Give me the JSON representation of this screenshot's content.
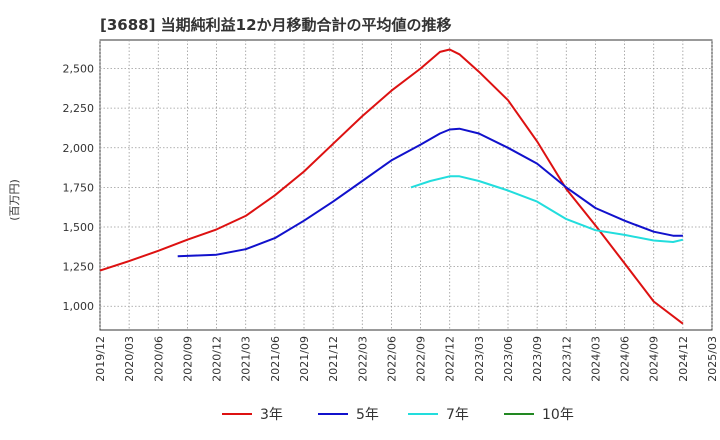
{
  "chart_data": {
    "type": "line",
    "title": "[3688]  当期純利益12か月移動合計の平均値の推移",
    "ylabel": "(百万円)",
    "xlabel": "",
    "ylim": [
      850,
      2680
    ],
    "xlim": [
      "2019-12",
      "2025-03"
    ],
    "grid": true,
    "legend_position": "bottom",
    "y_ticks": [
      1000,
      1250,
      1500,
      1750,
      2000,
      2250,
      2500
    ],
    "y_tick_labels": [
      "1,000",
      "1,250",
      "1,500",
      "1,750",
      "2,000",
      "2,250",
      "2,500"
    ],
    "x_tick_labels": [
      "2019/12",
      "2020/03",
      "2020/06",
      "2020/09",
      "2020/12",
      "2021/03",
      "2021/06",
      "2021/09",
      "2021/12",
      "2022/03",
      "2022/06",
      "2022/09",
      "2022/12",
      "2023/03",
      "2023/06",
      "2023/09",
      "2023/12",
      "2024/03",
      "2024/06",
      "2024/09",
      "2024/12",
      "2025/03"
    ],
    "series": [
      {
        "name": "3年",
        "color": "#dd1111",
        "points": [
          [
            "2019-12",
            1225
          ],
          [
            "2020-03",
            1285
          ],
          [
            "2020-06",
            1350
          ],
          [
            "2020-09",
            1420
          ],
          [
            "2020-12",
            1485
          ],
          [
            "2021-03",
            1570
          ],
          [
            "2021-06",
            1700
          ],
          [
            "2021-09",
            1850
          ],
          [
            "2021-12",
            2025
          ],
          [
            "2022-03",
            2200
          ],
          [
            "2022-06",
            2360
          ],
          [
            "2022-09",
            2500
          ],
          [
            "2022-11",
            2605
          ],
          [
            "2022-12",
            2620
          ],
          [
            "2023-01",
            2590
          ],
          [
            "2023-03",
            2480
          ],
          [
            "2023-06",
            2300
          ],
          [
            "2023-09",
            2040
          ],
          [
            "2023-12",
            1740
          ],
          [
            "2024-03",
            1510
          ],
          [
            "2024-06",
            1270
          ],
          [
            "2024-09",
            1030
          ],
          [
            "2024-12",
            890
          ]
        ]
      },
      {
        "name": "5年",
        "color": "#1111cc",
        "points": [
          [
            "2020-08",
            1315
          ],
          [
            "2020-12",
            1325
          ],
          [
            "2021-03",
            1360
          ],
          [
            "2021-06",
            1430
          ],
          [
            "2021-09",
            1540
          ],
          [
            "2021-12",
            1660
          ],
          [
            "2022-03",
            1790
          ],
          [
            "2022-06",
            1920
          ],
          [
            "2022-09",
            2020
          ],
          [
            "2022-11",
            2090
          ],
          [
            "2022-12",
            2115
          ],
          [
            "2023-01",
            2120
          ],
          [
            "2023-03",
            2090
          ],
          [
            "2023-06",
            2000
          ],
          [
            "2023-09",
            1900
          ],
          [
            "2023-12",
            1750
          ],
          [
            "2024-03",
            1620
          ],
          [
            "2024-06",
            1540
          ],
          [
            "2024-09",
            1470
          ],
          [
            "2024-11",
            1445
          ],
          [
            "2024-12",
            1445
          ]
        ]
      },
      {
        "name": "7年",
        "color": "#22dddd",
        "points": [
          [
            "2022-08",
            1750
          ],
          [
            "2022-10",
            1790
          ],
          [
            "2022-12",
            1820
          ],
          [
            "2023-01",
            1820
          ],
          [
            "2023-03",
            1790
          ],
          [
            "2023-06",
            1730
          ],
          [
            "2023-09",
            1660
          ],
          [
            "2023-12",
            1550
          ],
          [
            "2024-03",
            1480
          ],
          [
            "2024-06",
            1450
          ],
          [
            "2024-09",
            1415
          ],
          [
            "2024-11",
            1405
          ],
          [
            "2024-12",
            1420
          ]
        ]
      },
      {
        "name": "10年",
        "color": "#228822",
        "points": []
      }
    ]
  }
}
